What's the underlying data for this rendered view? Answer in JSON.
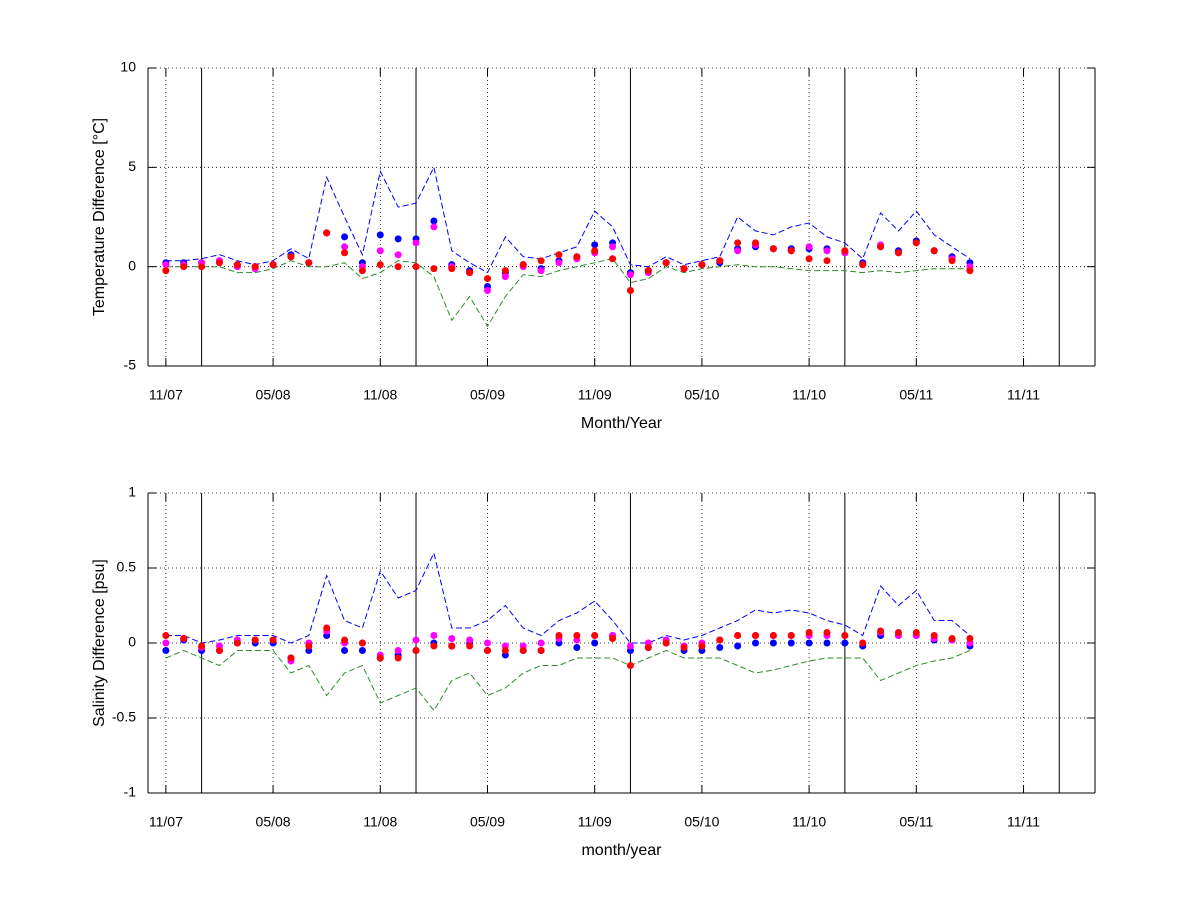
{
  "chart_data": [
    {
      "type": "line",
      "ylabel": "Temperature Difference [°C]",
      "xlabel": "Month/Year",
      "x": [
        "2007-11",
        "2007-12",
        "2008-01",
        "2008-02",
        "2008-03",
        "2008-04",
        "2008-05",
        "2008-06",
        "2008-07",
        "2008-08",
        "2008-09",
        "2008-10",
        "2008-11",
        "2008-12",
        "2009-01",
        "2009-02",
        "2009-03",
        "2009-04",
        "2009-05",
        "2009-06",
        "2009-07",
        "2009-08",
        "2009-09",
        "2009-10",
        "2009-11",
        "2009-12",
        "2010-01",
        "2010-02",
        "2010-03",
        "2010-04",
        "2010-05",
        "2010-06",
        "2010-07",
        "2010-08",
        "2010-09",
        "2010-10",
        "2010-11",
        "2010-12",
        "2011-01",
        "2011-02",
        "2011-03",
        "2011-04",
        "2011-05",
        "2011-06",
        "2011-07",
        "2011-08"
      ],
      "xlim": [
        "2007-10",
        "2012-03"
      ],
      "xticks": [
        {
          "value": "2007-11",
          "label": "11/07"
        },
        {
          "value": "2008-05",
          "label": "05/08"
        },
        {
          "value": "2008-11",
          "label": "11/08"
        },
        {
          "value": "2009-05",
          "label": "05/09"
        },
        {
          "value": "2009-11",
          "label": "11/09"
        },
        {
          "value": "2010-05",
          "label": "05/10"
        },
        {
          "value": "2010-11",
          "label": "11/10"
        },
        {
          "value": "2011-05",
          "label": "05/11"
        },
        {
          "value": "2011-11",
          "label": "11/11"
        }
      ],
      "vlines": [
        "2008-01",
        "2009-01",
        "2010-01",
        "2011-01",
        "2012-01"
      ],
      "ylim": [
        -5,
        10
      ],
      "yticks": [
        -5,
        0,
        5,
        10
      ],
      "grid": true,
      "series": [
        {
          "color": "#0000ff",
          "style": "dashed",
          "values": [
            0.3,
            0.3,
            0.4,
            0.6,
            0.3,
            0.1,
            0.3,
            0.9,
            0.4,
            4.5,
            2.5,
            0.6,
            4.8,
            3.0,
            3.2,
            5.0,
            0.8,
            0.2,
            -0.3,
            1.5,
            0.5,
            0.4,
            0.7,
            1.0,
            2.8,
            2.0,
            0.1,
            0.0,
            0.5,
            0.1,
            0.3,
            0.5,
            2.5,
            1.8,
            1.6,
            2.0,
            2.2,
            1.5,
            1.2,
            0.4,
            2.7,
            1.8,
            2.8,
            1.6,
            1.0,
            0.4
          ]
        },
        {
          "color": "#2e8b2e",
          "style": "dashed",
          "values": [
            0.0,
            0.0,
            0.0,
            0.0,
            -0.3,
            -0.3,
            -0.1,
            0.3,
            0.0,
            0.0,
            0.2,
            -0.6,
            -0.3,
            0.3,
            0.2,
            -0.5,
            -2.7,
            -1.5,
            -3.0,
            -1.5,
            -0.4,
            -0.5,
            -0.2,
            0.0,
            0.2,
            0.4,
            -0.8,
            -0.6,
            0.0,
            -0.3,
            -0.1,
            0.0,
            0.1,
            0.0,
            0.0,
            -0.1,
            -0.2,
            -0.2,
            -0.2,
            -0.3,
            -0.2,
            -0.3,
            -0.2,
            -0.1,
            -0.1,
            -0.1
          ]
        },
        {
          "color": "#0000ff",
          "style": "markers",
          "values": [
            0.2,
            0.2,
            0.2,
            0.3,
            0.1,
            0.0,
            0.1,
            0.6,
            0.2,
            1.7,
            1.5,
            0.2,
            1.6,
            1.4,
            1.4,
            2.3,
            0.1,
            -0.2,
            -1.0,
            -0.3,
            0.1,
            -0.1,
            0.3,
            0.5,
            1.1,
            1.2,
            -0.3,
            -0.2,
            0.2,
            -0.1,
            0.1,
            0.2,
            0.9,
            1.0,
            0.9,
            0.9,
            0.9,
            0.9,
            0.7,
            0.2,
            1.0,
            0.8,
            1.3,
            0.8,
            0.5,
            0.2
          ]
        },
        {
          "color": "#ff00ff",
          "style": "markers",
          "values": [
            0.1,
            0.1,
            0.2,
            0.3,
            0.0,
            -0.1,
            0.1,
            0.5,
            0.2,
            1.7,
            1.0,
            0.0,
            0.8,
            0.6,
            1.2,
            2.0,
            0.0,
            -0.3,
            -1.2,
            -0.5,
            0.0,
            -0.2,
            0.2,
            0.4,
            0.7,
            1.0,
            -0.4,
            -0.3,
            0.2,
            -0.1,
            0.1,
            0.3,
            0.8,
            1.1,
            0.9,
            0.8,
            1.0,
            0.8,
            0.7,
            0.1,
            1.1,
            0.7,
            1.2,
            0.8,
            0.4,
            0.0
          ]
        },
        {
          "color": "#ff0000",
          "style": "markers",
          "values": [
            -0.2,
            0.0,
            0.0,
            0.2,
            0.1,
            0.0,
            0.1,
            0.5,
            0.2,
            1.7,
            0.7,
            -0.2,
            0.1,
            0.0,
            0.0,
            -0.1,
            -0.1,
            -0.3,
            -0.6,
            -0.2,
            0.1,
            0.3,
            0.6,
            0.5,
            0.8,
            0.4,
            -1.2,
            -0.2,
            0.2,
            -0.1,
            0.1,
            0.3,
            1.2,
            1.2,
            0.9,
            0.8,
            0.4,
            0.3,
            0.8,
            0.1,
            1.0,
            0.7,
            1.2,
            0.8,
            0.3,
            -0.2
          ]
        }
      ]
    },
    {
      "type": "line",
      "ylabel": "Salinity Difference [psu]",
      "xlabel": "month/year",
      "x": [
        "2007-11",
        "2007-12",
        "2008-01",
        "2008-02",
        "2008-03",
        "2008-04",
        "2008-05",
        "2008-06",
        "2008-07",
        "2008-08",
        "2008-09",
        "2008-10",
        "2008-11",
        "2008-12",
        "2009-01",
        "2009-02",
        "2009-03",
        "2009-04",
        "2009-05",
        "2009-06",
        "2009-07",
        "2009-08",
        "2009-09",
        "2009-10",
        "2009-11",
        "2009-12",
        "2010-01",
        "2010-02",
        "2010-03",
        "2010-04",
        "2010-05",
        "2010-06",
        "2010-07",
        "2010-08",
        "2010-09",
        "2010-10",
        "2010-11",
        "2010-12",
        "2011-01",
        "2011-02",
        "2011-03",
        "2011-04",
        "2011-05",
        "2011-06",
        "2011-07",
        "2011-08"
      ],
      "xlim": [
        "2007-10",
        "2012-03"
      ],
      "xticks": [
        {
          "value": "2007-11",
          "label": "11/07"
        },
        {
          "value": "2008-05",
          "label": "05/08"
        },
        {
          "value": "2008-11",
          "label": "11/08"
        },
        {
          "value": "2009-05",
          "label": "05/09"
        },
        {
          "value": "2009-11",
          "label": "11/09"
        },
        {
          "value": "2010-05",
          "label": "05/10"
        },
        {
          "value": "2010-11",
          "label": "11/10"
        },
        {
          "value": "2011-05",
          "label": "05/11"
        },
        {
          "value": "2011-11",
          "label": "11/11"
        }
      ],
      "vlines": [
        "2008-01",
        "2009-01",
        "2010-01",
        "2011-01",
        "2012-01"
      ],
      "ylim": [
        -1,
        1
      ],
      "yticks": [
        -1,
        -0.5,
        0,
        0.5,
        1
      ],
      "grid": true,
      "series": [
        {
          "color": "#0000ff",
          "style": "dashed",
          "values": [
            0.05,
            0.05,
            0.0,
            0.02,
            0.05,
            0.05,
            0.05,
            0.0,
            0.05,
            0.45,
            0.15,
            0.1,
            0.48,
            0.3,
            0.35,
            0.6,
            0.1,
            0.1,
            0.15,
            0.25,
            0.1,
            0.05,
            0.15,
            0.2,
            0.28,
            0.15,
            0.0,
            0.0,
            0.05,
            0.02,
            0.05,
            0.1,
            0.15,
            0.22,
            0.2,
            0.22,
            0.2,
            0.15,
            0.12,
            0.05,
            0.38,
            0.25,
            0.35,
            0.15,
            0.15,
            0.05
          ]
        },
        {
          "color": "#2e8b2e",
          "style": "dashed",
          "values": [
            -0.1,
            -0.05,
            -0.1,
            -0.15,
            -0.05,
            -0.05,
            -0.05,
            -0.2,
            -0.15,
            -0.35,
            -0.2,
            -0.15,
            -0.4,
            -0.35,
            -0.3,
            -0.45,
            -0.25,
            -0.2,
            -0.35,
            -0.3,
            -0.2,
            -0.15,
            -0.15,
            -0.1,
            -0.1,
            -0.1,
            -0.15,
            -0.1,
            -0.05,
            -0.1,
            -0.1,
            -0.1,
            -0.15,
            -0.2,
            -0.18,
            -0.15,
            -0.12,
            -0.1,
            -0.1,
            -0.1,
            -0.25,
            -0.2,
            -0.15,
            -0.12,
            -0.1,
            -0.05
          ]
        },
        {
          "color": "#0000ff",
          "style": "markers",
          "values": [
            -0.05,
            0.02,
            -0.05,
            -0.05,
            0.0,
            0.0,
            0.0,
            -0.1,
            -0.05,
            0.05,
            -0.05,
            -0.05,
            -0.1,
            -0.08,
            -0.05,
            0.0,
            -0.02,
            0.0,
            -0.05,
            -0.08,
            -0.05,
            -0.05,
            0.0,
            -0.03,
            0.0,
            0.05,
            -0.05,
            -0.03,
            0.0,
            -0.05,
            -0.05,
            -0.03,
            -0.02,
            0.0,
            0.0,
            0.0,
            0.0,
            0.0,
            0.0,
            -0.02,
            0.05,
            0.05,
            0.05,
            0.02,
            0.02,
            -0.02
          ]
        },
        {
          "color": "#ff00ff",
          "style": "markers",
          "values": [
            0.0,
            0.03,
            -0.03,
            -0.02,
            0.02,
            0.02,
            0.02,
            -0.12,
            0.0,
            0.08,
            0.0,
            0.0,
            -0.08,
            -0.05,
            0.02,
            0.05,
            0.03,
            0.02,
            0.0,
            -0.02,
            -0.02,
            0.0,
            0.03,
            0.02,
            0.05,
            0.05,
            -0.02,
            0.0,
            0.02,
            -0.02,
            0.0,
            0.02,
            0.05,
            0.05,
            0.05,
            0.05,
            0.05,
            0.05,
            0.05,
            0.0,
            0.07,
            0.05,
            0.05,
            0.03,
            0.02,
            0.0
          ]
        },
        {
          "color": "#ff0000",
          "style": "markers",
          "values": [
            0.05,
            0.03,
            -0.02,
            -0.05,
            0.0,
            0.02,
            0.02,
            -0.1,
            -0.02,
            0.1,
            0.02,
            0.0,
            -0.1,
            -0.1,
            -0.05,
            -0.02,
            -0.02,
            -0.02,
            -0.05,
            -0.05,
            -0.05,
            -0.05,
            0.05,
            0.05,
            0.05,
            0.03,
            -0.15,
            -0.03,
            0.0,
            -0.03,
            -0.02,
            0.02,
            0.05,
            0.05,
            0.05,
            0.05,
            0.07,
            0.07,
            0.05,
            0.0,
            0.08,
            0.07,
            0.07,
            0.05,
            0.03,
            0.03
          ]
        }
      ]
    }
  ]
}
